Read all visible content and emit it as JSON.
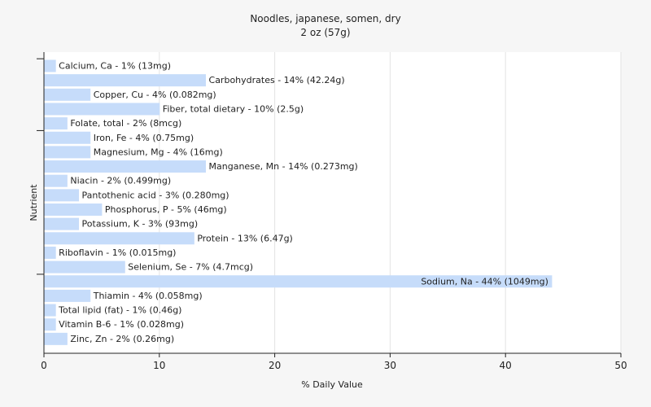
{
  "chart_data": {
    "type": "bar",
    "orientation": "horizontal",
    "title": "Noodles, japanese, somen, dry",
    "subtitle": "2 oz (57g)",
    "xlabel": "% Daily Value",
    "ylabel": "Nutrient",
    "xlim": [
      0,
      50
    ],
    "xticks": [
      0,
      10,
      20,
      30,
      40,
      50
    ],
    "grid": true,
    "bar_color": "#c6dcfa",
    "categories": [
      "Calcium, Ca",
      "Carbohydrates",
      "Copper, Cu",
      "Fiber, total dietary",
      "Folate, total",
      "Iron, Fe",
      "Magnesium, Mg",
      "Manganese, Mn",
      "Niacin",
      "Pantothenic acid",
      "Phosphorus, P",
      "Potassium, K",
      "Protein",
      "Riboflavin",
      "Selenium, Se",
      "Sodium, Na",
      "Thiamin",
      "Total lipid (fat)",
      "Vitamin B-6",
      "Zinc, Zn"
    ],
    "values": [
      1,
      14,
      4,
      10,
      2,
      4,
      4,
      14,
      2,
      3,
      5,
      3,
      13,
      1,
      7,
      44,
      4,
      1,
      1,
      2
    ],
    "labels": [
      "Calcium, Ca - 1% (13mg)",
      "Carbohydrates - 14% (42.24g)",
      "Copper, Cu - 4% (0.082mg)",
      "Fiber, total dietary - 10% (2.5g)",
      "Folate, total - 2% (8mcg)",
      "Iron, Fe - 4% (0.75mg)",
      "Magnesium, Mg - 4% (16mg)",
      "Manganese, Mn - 14% (0.273mg)",
      "Niacin - 2% (0.499mg)",
      "Pantothenic acid - 3% (0.280mg)",
      "Phosphorus, P - 5% (46mg)",
      "Potassium, K - 3% (93mg)",
      "Protein - 13% (6.47g)",
      "Riboflavin - 1% (0.015mg)",
      "Selenium, Se - 7% (4.7mcg)",
      "Sodium, Na - 44% (1049mg)",
      "Thiamin - 4% (0.058mg)",
      "Total lipid (fat) - 1% (0.46g)",
      "Vitamin B-6 - 1% (0.028mg)",
      "Zinc, Zn - 2% (0.26mg)"
    ]
  }
}
